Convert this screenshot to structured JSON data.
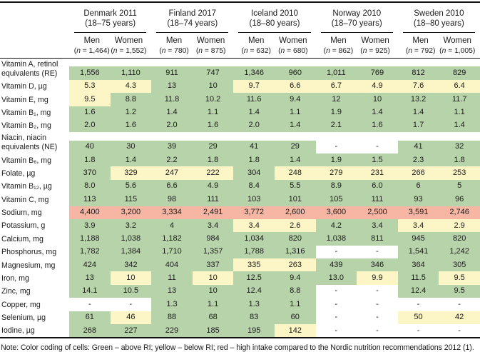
{
  "header": {
    "men_label": "Men",
    "women_label": "Women",
    "groups": [
      {
        "name": "Denmark 2011",
        "years": "(18–75 years)",
        "men_n": "(n = 1,464)",
        "women_n": "(n = 1,552)"
      },
      {
        "name": "Finland 2017",
        "years": "(18–74 years)",
        "men_n": "(n = 780)",
        "women_n": "(n = 875)"
      },
      {
        "name": "Iceland 2010",
        "years": "(18–80 years)",
        "men_n": "(n = 632)",
        "women_n": "(n = 680)"
      },
      {
        "name": "Norway 2010",
        "years": "(18–70 years)",
        "men_n": "(n = 862)",
        "women_n": "(n = 925)"
      },
      {
        "name": "Sweden 2010",
        "years": "(18–80 years)",
        "men_n": "(n = 792)",
        "women_n": "(n = 1,005)"
      }
    ]
  },
  "color_legend": {
    "green": "#b7d3a9",
    "yellow": "#fcf5c5",
    "red": "#f6b6a3",
    "green_meaning": "above RI",
    "yellow_meaning": "below RI",
    "red_meaning": "high intake"
  },
  "rows": [
    {
      "label": "Vitamin A, retinol equivalents (RE)",
      "values": [
        "1,556",
        "1,110",
        "911",
        "747",
        "1,346",
        "960",
        "1,011",
        "769",
        "812",
        "829"
      ],
      "colors": [
        "g",
        "g",
        "g",
        "g",
        "g",
        "g",
        "g",
        "g",
        "g",
        "g"
      ]
    },
    {
      "label": "Vitamin D, µg",
      "values": [
        "5.3",
        "4.3",
        "13",
        "10",
        "9.7",
        "6.6",
        "6.7",
        "4.9",
        "7.6",
        "6.4"
      ],
      "colors": [
        "y",
        "y",
        "g",
        "g",
        "y",
        "y",
        "y",
        "y",
        "y",
        "y"
      ]
    },
    {
      "label": "Vitamin E, mg",
      "values": [
        "9.5",
        "8.8",
        "11.8",
        "10.2",
        "11.6",
        "9.4",
        "12",
        "10",
        "13.2",
        "11.7"
      ],
      "colors": [
        "y",
        "g",
        "g",
        "g",
        "g",
        "g",
        "g",
        "g",
        "g",
        "g"
      ]
    },
    {
      "label": "Vitamin B₁, mg",
      "values": [
        "1.6",
        "1.2",
        "1.4",
        "1.1",
        "1.4",
        "1.1",
        "1.9",
        "1.4",
        "1.4",
        "1.1"
      ],
      "colors": [
        "g",
        "g",
        "g",
        "g",
        "g",
        "g",
        "g",
        "g",
        "g",
        "g"
      ]
    },
    {
      "label": "Vitamin B₂, mg",
      "values": [
        "2.0",
        "1.6",
        "2.0",
        "1.6",
        "2.0",
        "1.4",
        "2.1",
        "1.6",
        "1.7",
        "1.4"
      ],
      "colors": [
        "g",
        "g",
        "g",
        "g",
        "g",
        "g",
        "g",
        "g",
        "g",
        "g"
      ]
    },
    {
      "label": "Niacin, niacin equiv­alents (NE)",
      "values": [
        "40",
        "30",
        "39",
        "29",
        "41",
        "29",
        "-",
        "-",
        "41",
        "32"
      ],
      "colors": [
        "g",
        "g",
        "g",
        "g",
        "g",
        "g",
        "w",
        "w",
        "g",
        "g"
      ]
    },
    {
      "label": "Vitamin B₆, mg",
      "values": [
        "1.8",
        "1.4",
        "2.2",
        "1.8",
        "1.8",
        "1.4",
        "1.9",
        "1.5",
        "2.3",
        "1.8"
      ],
      "colors": [
        "g",
        "g",
        "g",
        "g",
        "g",
        "g",
        "g",
        "g",
        "g",
        "g"
      ]
    },
    {
      "label": "Folate, µg",
      "values": [
        "370",
        "329",
        "247",
        "222",
        "304",
        "248",
        "279",
        "231",
        "266",
        "253"
      ],
      "colors": [
        "g",
        "y",
        "y",
        "y",
        "g",
        "y",
        "y",
        "y",
        "y",
        "y"
      ]
    },
    {
      "label": "Vitamin B₁₂, µg",
      "values": [
        "8.0",
        "5.6",
        "6.6",
        "4.9",
        "8.4",
        "5.5",
        "8.9",
        "6.0",
        "6",
        "5"
      ],
      "colors": [
        "g",
        "g",
        "g",
        "g",
        "g",
        "g",
        "g",
        "g",
        "g",
        "g"
      ]
    },
    {
      "label": "Vitamin C, mg",
      "values": [
        "113",
        "115",
        "98",
        "111",
        "103",
        "101",
        "105",
        "111",
        "93",
        "96"
      ],
      "colors": [
        "g",
        "g",
        "g",
        "g",
        "g",
        "g",
        "g",
        "g",
        "g",
        "g"
      ]
    },
    {
      "label": "Sodium, mg",
      "values": [
        "4,400",
        "3,200",
        "3,334",
        "2,491",
        "3,772",
        "2,600",
        "3,600",
        "2,500",
        "3,591",
        "2,746"
      ],
      "colors": [
        "r",
        "r",
        "r",
        "r",
        "r",
        "r",
        "r",
        "r",
        "r",
        "r"
      ]
    },
    {
      "label": "Potassium, g",
      "values": [
        "3.9",
        "3.2",
        "4",
        "3.4",
        "3.4",
        "2.6",
        "4.2",
        "3.4",
        "3.4",
        "2.9"
      ],
      "colors": [
        "g",
        "g",
        "g",
        "g",
        "y",
        "y",
        "g",
        "g",
        "y",
        "y"
      ]
    },
    {
      "label": "Calcium, mg",
      "values": [
        "1,188",
        "1,038",
        "1,182",
        "984",
        "1,034",
        "820",
        "1,038",
        "811",
        "945",
        "820"
      ],
      "colors": [
        "g",
        "g",
        "g",
        "g",
        "g",
        "g",
        "g",
        "g",
        "g",
        "g"
      ]
    },
    {
      "label": "Phosphorus, mg",
      "values": [
        "1,782",
        "1,384",
        "1,710",
        "1,357",
        "1,788",
        "1,316",
        "-",
        "-",
        "1,541",
        "1,242"
      ],
      "colors": [
        "g",
        "g",
        "g",
        "g",
        "g",
        "g",
        "w",
        "w",
        "g",
        "g"
      ]
    },
    {
      "label": "Magnesium, mg",
      "values": [
        "424",
        "342",
        "404",
        "337",
        "335",
        "263",
        "439",
        "346",
        "364",
        "305"
      ],
      "colors": [
        "g",
        "g",
        "g",
        "g",
        "y",
        "y",
        "g",
        "g",
        "g",
        "g"
      ]
    },
    {
      "label": "Iron, mg",
      "values": [
        "13",
        "10",
        "11",
        "10",
        "12.5",
        "9.4",
        "13.0",
        "9.9",
        "11.5",
        "9.5"
      ],
      "colors": [
        "g",
        "y",
        "g",
        "y",
        "g",
        "g",
        "g",
        "y",
        "g",
        "y"
      ]
    },
    {
      "label": "Zinc, mg",
      "values": [
        "14.1",
        "10.5",
        "13",
        "10",
        "12.4",
        "8.8",
        "-",
        "-",
        "12.4",
        "9.5"
      ],
      "colors": [
        "g",
        "g",
        "g",
        "g",
        "g",
        "g",
        "w",
        "w",
        "g",
        "g"
      ]
    },
    {
      "label": "Copper, mg",
      "values": [
        "-",
        "-",
        "1.3",
        "1.1",
        "1.3",
        "1.1",
        "-",
        "-",
        "-",
        "-"
      ],
      "colors": [
        "w",
        "w",
        "g",
        "g",
        "g",
        "g",
        "w",
        "w",
        "w",
        "w"
      ]
    },
    {
      "label": "Selenium, µg",
      "values": [
        "61",
        "46",
        "88",
        "68",
        "83",
        "60",
        "-",
        "-",
        "50",
        "42"
      ],
      "colors": [
        "g",
        "y",
        "g",
        "g",
        "g",
        "g",
        "w",
        "w",
        "y",
        "y"
      ]
    },
    {
      "label": "Iodine, µg",
      "values": [
        "268",
        "227",
        "229",
        "185",
        "195",
        "142",
        "-",
        "-",
        "-",
        "-"
      ],
      "colors": [
        "g",
        "g",
        "g",
        "g",
        "g",
        "y",
        "w",
        "w",
        "w",
        "w"
      ]
    }
  ],
  "note": "Note: Color coding of cells: Green – above RI; yellow – below RI; red – high intake compared to the Nordic nutrition recommendations 2012 (1)."
}
